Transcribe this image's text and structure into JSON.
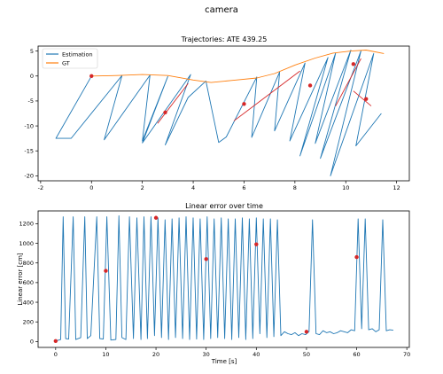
{
  "figure": {
    "suptitle": "camera"
  },
  "colors": {
    "estimation": "#1f77b4",
    "gt": "#ff7f0e",
    "markers": "#d62728",
    "segments": "#d62728",
    "axes": "#000000"
  },
  "chart_data": [
    {
      "type": "line",
      "title": "Trajectories: ATE 439.25",
      "xlabel": "",
      "ylabel": "",
      "xlim": [
        -2.1,
        12.5
      ],
      "ylim": [
        -21,
        6
      ],
      "xticks": [
        -2,
        0,
        2,
        4,
        6,
        8,
        10,
        12
      ],
      "yticks": [
        -20,
        -15,
        -10,
        -5,
        0,
        5
      ],
      "grid": false,
      "legend": {
        "placement": "top-left",
        "entries": [
          "Estimation",
          "GT"
        ]
      },
      "series": [
        {
          "name": "GT",
          "x": [
            0,
            1,
            2,
            3,
            4,
            4.7,
            5.5,
            6.5,
            7.2,
            8,
            8.8,
            9.5,
            10.2,
            10.8,
            11.5
          ],
          "y": [
            0,
            0.1,
            0.3,
            0.1,
            -0.8,
            -1.3,
            -0.9,
            -0.4,
            0.5,
            2.2,
            3.6,
            4.6,
            5.0,
            5.2,
            4.5
          ]
        },
        {
          "name": "Estimation",
          "x": [
            0,
            -1.4,
            -0.8,
            1.2,
            0.5,
            2.3,
            2.0,
            3.0,
            2.0,
            3.9,
            2.9,
            3.8,
            4.5,
            5.0,
            5.3,
            6.5,
            6.3,
            7.4,
            7.2,
            8.4,
            7.8,
            9.3,
            8.2,
            9.6,
            8.8,
            10.2,
            9.0,
            10.6,
            9.4,
            11.1,
            10.4,
            11.4
          ],
          "y": [
            0,
            -12.5,
            -12.5,
            0.1,
            -12.8,
            0.2,
            -13.0,
            -0.1,
            -13.4,
            0.3,
            -13.8,
            -4.3,
            -1.0,
            -13.3,
            -12.2,
            -0.2,
            -12.3,
            0.8,
            -11.0,
            2.6,
            -13.0,
            3.7,
            -16.0,
            4.6,
            -13.5,
            5.2,
            -16.5,
            5.1,
            -20.0,
            4.5,
            -14.0,
            -7.5
          ]
        }
      ],
      "markers": {
        "x": [
          0,
          2.9,
          6.0,
          8.6,
          10.3,
          10.8
        ],
        "y": [
          0,
          -7.3,
          -5.6,
          -1.9,
          2.4,
          -4.6
        ]
      },
      "segments": [
        {
          "x": [
            2.6,
            3.8
          ],
          "y": [
            -9.5,
            -1.5
          ]
        },
        {
          "x": [
            5.6,
            8.2
          ],
          "y": [
            -9.0,
            1.0
          ]
        },
        {
          "x": [
            9.6,
            10.6
          ],
          "y": [
            -6.0,
            3.5
          ]
        },
        {
          "x": [
            10.3,
            11.0
          ],
          "y": [
            -3.0,
            -6.0
          ]
        }
      ]
    },
    {
      "type": "line",
      "title": "Linear error over time",
      "xlabel": "Time [s]",
      "ylabel": "Linear error [cm]",
      "xlim": [
        -3.5,
        70.5
      ],
      "ylim": [
        -60,
        1330
      ],
      "xticks": [
        0,
        10,
        20,
        30,
        40,
        50,
        60,
        70
      ],
      "yticks": [
        0,
        200,
        400,
        600,
        800,
        1000,
        1200
      ],
      "grid": false,
      "series": [
        {
          "name": "",
          "x": [
            0,
            1,
            1.5,
            2,
            2.6,
            3.5,
            4,
            5,
            5.8,
            6.3,
            7,
            8.2,
            8.8,
            9.5,
            10.2,
            11,
            12,
            12.6,
            13.2,
            14,
            14.7,
            15.5,
            16.2,
            17,
            17.6,
            18.3,
            19,
            19.7,
            20.4,
            21.1,
            21.8,
            22.5,
            23.2,
            23.9,
            24.6,
            25.3,
            26,
            26.7,
            27.4,
            28.1,
            28.8,
            29.5,
            30.2,
            30.9,
            31.6,
            32.3,
            33,
            33.7,
            34.4,
            35.1,
            35.8,
            36.5,
            37.2,
            37.9,
            38.6,
            39.3,
            40,
            40.7,
            41.4,
            42.1,
            42.8,
            43.5,
            44.2,
            44.9,
            45.6,
            46.3,
            47,
            47.7,
            48.4,
            49.1,
            49.8,
            50.5,
            51.2,
            51.9,
            52.6,
            53.3,
            54,
            54.7,
            55.4,
            56.1,
            56.8,
            57.5,
            58.2,
            58.9,
            59.6,
            60.3,
            61,
            61.7,
            62.4,
            63.1,
            63.8,
            64.5,
            65.2,
            65.9,
            66.6,
            67.3
          ],
          "y": [
            5,
            20,
            1270,
            30,
            25,
            1270,
            20,
            40,
            1270,
            30,
            60,
            1270,
            30,
            25,
            1270,
            15,
            20,
            1280,
            40,
            20,
            1270,
            30,
            1260,
            20,
            1270,
            30,
            1270,
            60,
            1260,
            40,
            1240,
            20,
            1250,
            40,
            1260,
            30,
            1270,
            20,
            1260,
            25,
            1250,
            20,
            1270,
            30,
            1250,
            40,
            1260,
            30,
            1250,
            20,
            1250,
            40,
            1260,
            20,
            1250,
            30,
            1260,
            80,
            1250,
            40,
            1250,
            50,
            1240,
            60,
            100,
            80,
            70,
            90,
            60,
            80,
            70,
            100,
            1240,
            80,
            70,
            110,
            90,
            100,
            80,
            90,
            110,
            100,
            90,
            120,
            110,
            1250,
            130,
            1250,
            120,
            130,
            100,
            120,
            1240,
            110,
            120,
            115
          ]
        }
      ],
      "markers": {
        "x": [
          0,
          10,
          20,
          30,
          40,
          50,
          60
        ],
        "y": [
          5,
          720,
          1260,
          840,
          990,
          100,
          860
        ]
      }
    }
  ]
}
